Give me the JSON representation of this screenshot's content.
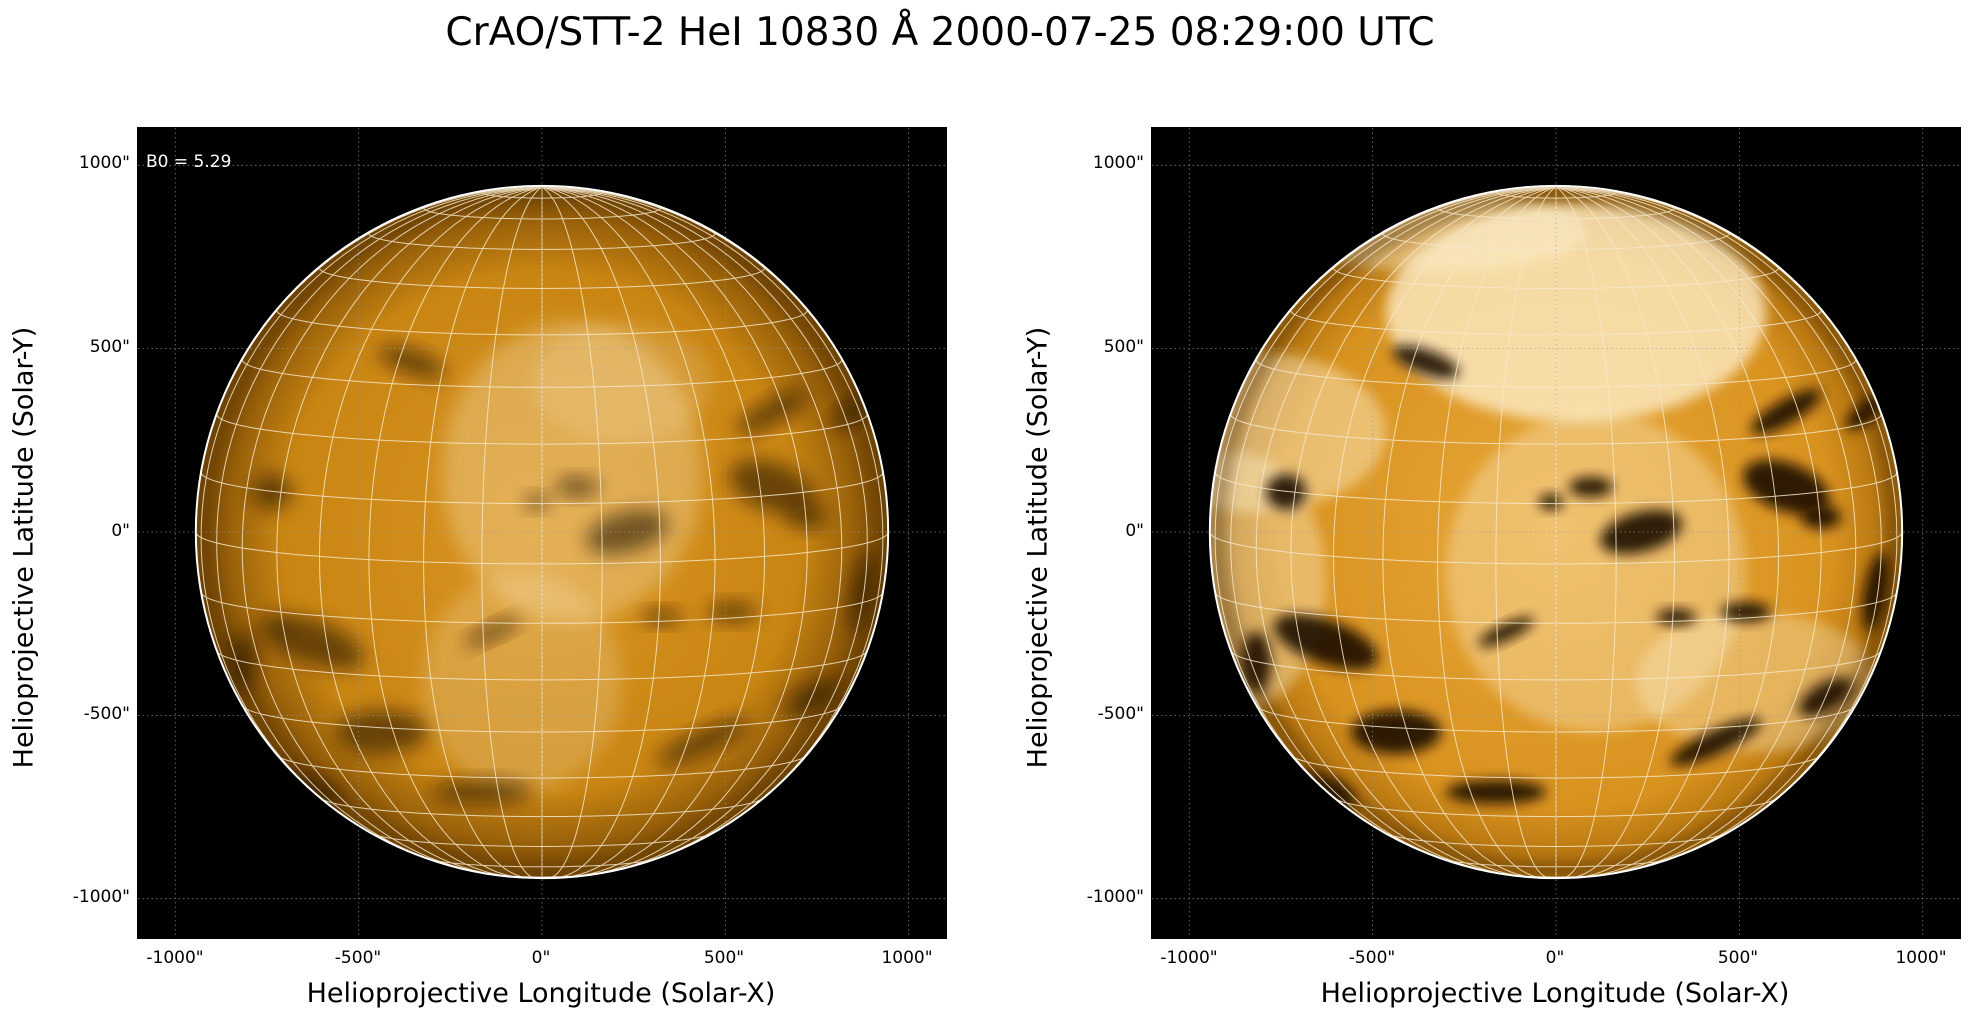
{
  "title": "CrAO/STT-2 HeI 10830 Å 2000-07-25 08:29:00 UTC",
  "axes": {
    "xlabel": "Helioprojective Longitude (Solar-X)",
    "ylabel": "Helioprojective Latitude (Solar-Y)",
    "xticks": [
      "-1000\"",
      "-500\"",
      "0\"",
      "500\"",
      "1000\""
    ],
    "yticks": [
      "1000\"",
      "500\"",
      "0\"",
      "-500\"",
      "-1000\""
    ],
    "range_arcsec": [
      -1100,
      1100
    ]
  },
  "panels": [
    {
      "name": "left",
      "annotation": "B0 = 5.29",
      "contrast": "normal"
    },
    {
      "name": "right",
      "annotation": "",
      "contrast": "enhanced"
    }
  ],
  "colors": {
    "background": "#000000",
    "disk_base": "#c98512",
    "grid": "#f5e8cc",
    "limb": "#ffffff"
  }
}
